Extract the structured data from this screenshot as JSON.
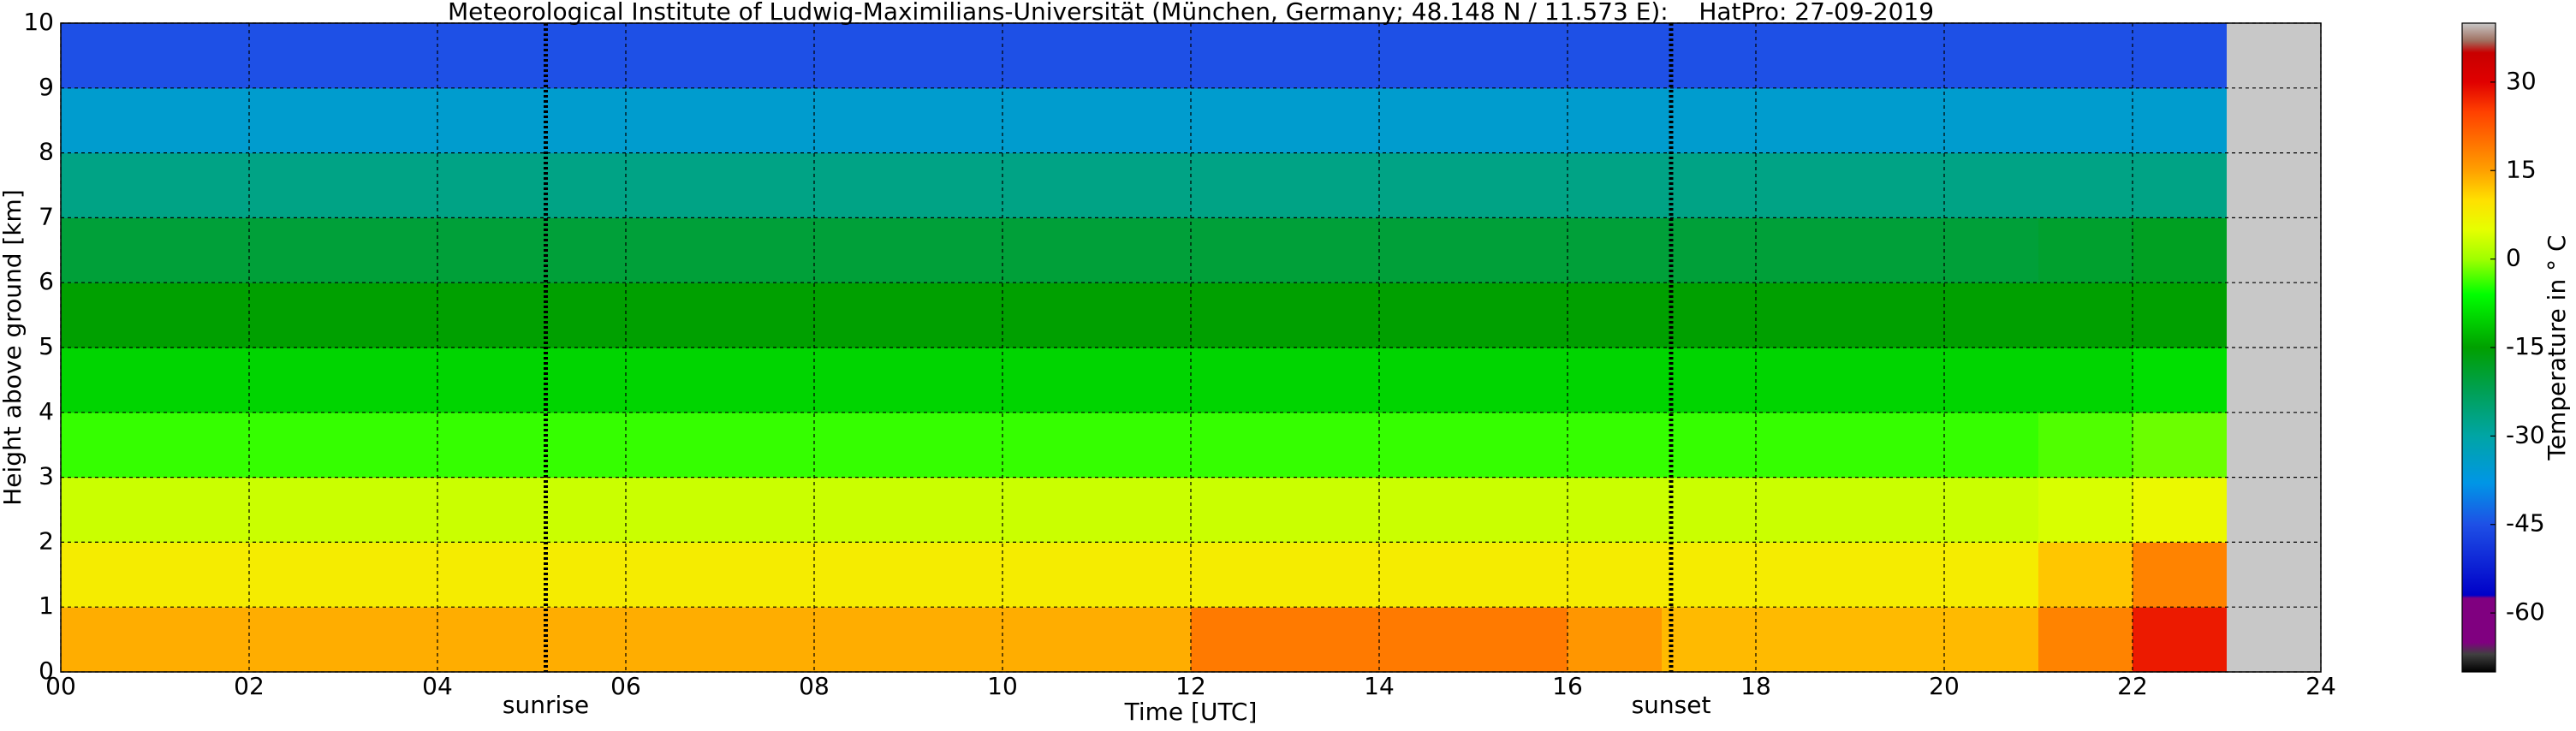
{
  "chart_data": {
    "type": "heatmap",
    "title": "Meteorological Institute of Ludwig-Maximilians-Universität (München, Germany; 48.148 N / 11.573 E):    HatPro: 27-09-2019",
    "x_label": "Time [UTC]",
    "y_label": "Height above ground [km]",
    "colorbar_label": "Temperature in ° C",
    "xbins": [
      0,
      1,
      2,
      3,
      4,
      5,
      6,
      7,
      8,
      9,
      10,
      11,
      12,
      13,
      14,
      15,
      16,
      17,
      18,
      19,
      20,
      21,
      22,
      23,
      24
    ],
    "ybins": [
      0,
      1,
      2,
      3,
      4,
      5,
      6,
      7,
      8,
      9,
      10
    ],
    "z": [
      [
        14,
        14,
        14,
        14,
        14,
        14,
        14,
        14,
        14,
        14,
        14,
        14,
        19,
        19,
        19,
        19,
        16,
        13,
        13,
        13,
        13,
        18,
        28,
        null
      ],
      [
        8,
        8,
        8,
        8,
        8,
        8,
        8,
        8,
        8,
        8,
        8,
        8,
        8,
        8,
        8,
        8,
        8,
        8,
        8,
        8,
        8,
        12,
        18,
        null
      ],
      [
        3,
        3,
        3,
        3,
        3,
        3,
        3,
        3,
        3,
        3,
        3,
        3,
        3,
        3,
        3,
        3,
        3,
        3,
        3,
        3,
        3,
        4,
        6,
        null
      ],
      [
        -4,
        -4,
        -4,
        -4,
        -4,
        -4,
        -4,
        -4,
        -4,
        -4,
        -4,
        -4,
        -4,
        -4,
        -4,
        -4,
        -4,
        -4,
        -4,
        -4,
        -4,
        -3,
        -2,
        null
      ],
      [
        -10,
        -10,
        -10,
        -10,
        -10,
        -10,
        -10,
        -10,
        -10,
        -10,
        -10,
        -10,
        -10,
        -10,
        -10,
        -10,
        -10,
        -10,
        -10,
        -10,
        -10,
        -10,
        -9,
        null
      ],
      [
        -15,
        -15,
        -15,
        -15,
        -15,
        -15,
        -15,
        -15,
        -15,
        -15,
        -15,
        -15,
        -15,
        -15,
        -15,
        -15,
        -15,
        -15,
        -15,
        -15,
        -15,
        -15,
        -15,
        null
      ],
      [
        -20,
        -20,
        -20,
        -20,
        -20,
        -20,
        -20,
        -20,
        -20,
        -20,
        -20,
        -20,
        -20,
        -20,
        -20,
        -20,
        -20,
        -20,
        -20,
        -20,
        -20,
        -19,
        -18,
        null
      ],
      [
        -27,
        -27,
        -27,
        -27,
        -27,
        -27,
        -27,
        -27,
        -27,
        -27,
        -27,
        -27,
        -27,
        -27,
        -27,
        -27,
        -27,
        -27,
        -27,
        -27,
        -27,
        -27,
        -27,
        null
      ],
      [
        -35,
        -35,
        -35,
        -35,
        -35,
        -35,
        -35,
        -35,
        -35,
        -35,
        -35,
        -35,
        -35,
        -35,
        -35,
        -35,
        -35,
        -35,
        -35,
        -35,
        -35,
        -35,
        -35,
        null
      ],
      [
        -45,
        -45,
        -45,
        -45,
        -45,
        -45,
        -45,
        -45,
        -45,
        -45,
        -45,
        -45,
        -45,
        -45,
        -45,
        -45,
        -45,
        -45,
        -45,
        -45,
        -45,
        -45,
        -45,
        null
      ]
    ],
    "xlim": [
      0,
      24
    ],
    "ylim": [
      0,
      10
    ],
    "xticks": [
      {
        "value": 0,
        "label": "00"
      },
      {
        "value": 2,
        "label": "02"
      },
      {
        "value": 4,
        "label": "04"
      },
      {
        "value": 6,
        "label": "06"
      },
      {
        "value": 8,
        "label": "08"
      },
      10,
      12,
      14,
      16,
      18,
      20,
      22,
      24
    ],
    "yticks": [
      0,
      1,
      2,
      3,
      4,
      5,
      6,
      7,
      8,
      9,
      10
    ],
    "clim": [
      -70,
      40
    ],
    "cticks": [
      30,
      15,
      0,
      -15,
      -30,
      -45,
      -60
    ],
    "colorscale": [
      [
        -70,
        "#000000"
      ],
      [
        -67,
        "#404040"
      ],
      [
        -65,
        "#800080"
      ],
      [
        -57.5,
        "#800080"
      ],
      [
        -57,
        "#0000c8"
      ],
      [
        -45,
        "#1e50e6"
      ],
      [
        -38,
        "#0096e6"
      ],
      [
        -30,
        "#00a5a5"
      ],
      [
        -22,
        "#00a050"
      ],
      [
        -15,
        "#00a000"
      ],
      [
        -6,
        "#00ff00"
      ],
      [
        0,
        "#a0ff00"
      ],
      [
        5,
        "#e6ff00"
      ],
      [
        10,
        "#ffe000"
      ],
      [
        15,
        "#ffa000"
      ],
      [
        25,
        "#ff4000"
      ],
      [
        30,
        "#e00000"
      ],
      [
        35,
        "#c80000"
      ],
      [
        37,
        "#a07060"
      ],
      [
        40,
        "#c8c8c8"
      ]
    ],
    "nodata_color": "#c8c8c8",
    "grid": true,
    "annotations": [
      {
        "label": "sunrise",
        "x": 5.15
      },
      {
        "label": "sunset",
        "x": 17.1
      }
    ]
  }
}
